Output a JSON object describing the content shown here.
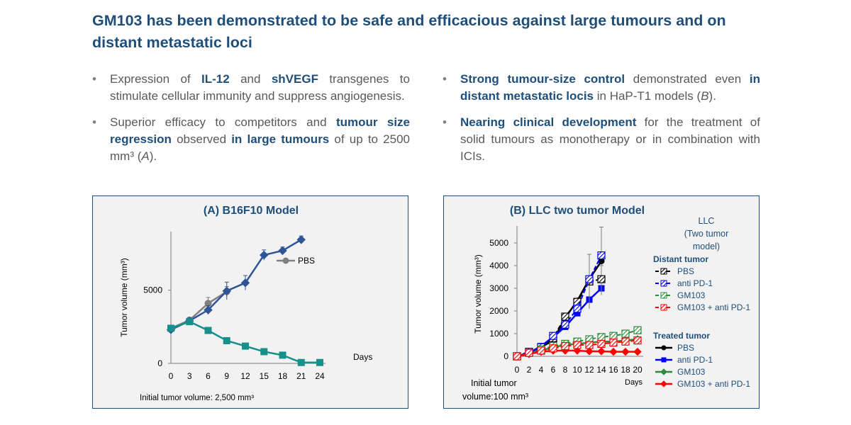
{
  "title": "GM103 has been demonstrated to be safe and efficacious against large tumours and on distant metastatic loci",
  "bullets_left": [
    {
      "pre": "Expression of ",
      "b1": "IL-12",
      "mid": " and ",
      "b2": "shVEGF",
      "post": " transgenes to stimulate cellular immunity and suppress angiogenesis."
    },
    {
      "pre": "Superior efficacy to competitors and ",
      "b1": "tumour size regression",
      "mid": " observed ",
      "b2": "in large tumours",
      "post": " of up to 2500 mm³ (",
      "it": "A",
      "end": ")."
    }
  ],
  "bullets_right": [
    {
      "b1": "Strong tumour-size control",
      "mid": " demonstrated even ",
      "b2": "in distant metastatic locis",
      "post": " in HaP-T1 models (",
      "it": "B",
      "end": ")."
    },
    {
      "b1": "Nearing clinical development",
      "post": " for the treatment of solid tumours as monotherapy or in combination with ICIs."
    }
  ],
  "colors": {
    "title": "#1f4e79",
    "text": "#595959",
    "pbs_a": "#808080",
    "treated_a": "#2f5597",
    "teal": "#178f8a",
    "black": "#000000",
    "blue": "#0000ff",
    "green": "#2e8b3d",
    "red": "#ff0000"
  },
  "chart_data": [
    {
      "type": "line",
      "title": "(A) B16F10 Model",
      "ylabel": "Tumor volume (mm³)",
      "xlabel": "Days",
      "note": "Initial tumor volume: 2,500  mm³",
      "x_ticks": [
        0,
        3,
        6,
        9,
        12,
        15,
        18,
        21,
        24
      ],
      "y_ticks": [
        0,
        5000
      ],
      "xlim": [
        0,
        24
      ],
      "ylim": [
        0,
        9000
      ],
      "legend": "PBS",
      "series": [
        {
          "name": "PBS",
          "color": "#808080",
          "marker": "circle",
          "x": [
            0,
            3,
            6,
            9
          ],
          "y": [
            2400,
            2950,
            4100,
            4900
          ],
          "err": [
            150,
            200,
            400,
            350
          ]
        },
        {
          "color": "#2f5597",
          "marker": "diamond",
          "x": [
            0,
            3,
            6,
            9,
            12,
            15,
            18,
            21
          ],
          "y": [
            2300,
            2900,
            3650,
            4950,
            5500,
            7400,
            7700,
            8450
          ],
          "err": [
            150,
            200,
            300,
            600,
            500,
            350,
            250,
            250
          ]
        },
        {
          "color": "#178f8a",
          "marker": "square",
          "x": [
            0,
            3,
            6,
            9,
            12,
            15,
            18,
            21,
            24
          ],
          "y": [
            2400,
            2850,
            2250,
            1550,
            1180,
            800,
            560,
            60,
            60
          ],
          "err": [
            0,
            0,
            0,
            0,
            0,
            0,
            0,
            0,
            0
          ]
        }
      ]
    },
    {
      "type": "line",
      "title": "(B) LLC two tumor Model",
      "ylabel": "Tumor volume (mm³)",
      "xlabel": "Days",
      "note_lines": [
        "Initial tumor",
        "volume:100  mm³"
      ],
      "x_ticks": [
        0,
        2,
        4,
        6,
        8,
        10,
        12,
        14,
        16,
        18,
        20
      ],
      "y_ticks": [
        0,
        1000,
        2000,
        3000,
        4000,
        5000
      ],
      "xlim": [
        0,
        20
      ],
      "ylim": [
        0,
        5500
      ],
      "legend_title_lines": [
        "LLC",
        "(Two tumor",
        "model)"
      ],
      "legend_groups": [
        {
          "title": "Distant tumor",
          "entries": [
            "PBS",
            "anti PD-1",
            "GM103",
            "GM103 + anti PD-1"
          ]
        },
        {
          "title": "Treated tumor",
          "entries": [
            "PBS",
            "anti PD-1",
            "GM103",
            "GM103 + anti PD-1"
          ]
        }
      ],
      "series": [
        {
          "name": "PBS",
          "group": "Treated tumor",
          "color": "#000000",
          "marker": "circle",
          "x": [
            0,
            2,
            4,
            6,
            8,
            10,
            12,
            14
          ],
          "y": [
            0,
            150,
            400,
            700,
            1700,
            2450,
            3400,
            4200
          ],
          "err": [
            0,
            0,
            0,
            0,
            0,
            0,
            0,
            1500
          ]
        },
        {
          "name": "anti PD-1",
          "group": "Treated tumor",
          "color": "#0000ff",
          "marker": "square",
          "x": [
            0,
            2,
            4,
            6,
            8,
            10,
            12,
            14
          ],
          "y": [
            0,
            150,
            450,
            850,
            1300,
            1900,
            2500,
            3000
          ],
          "err": [
            0,
            0,
            0,
            0,
            0,
            0,
            0,
            0
          ]
        },
        {
          "name": "GM103",
          "group": "Treated tumor",
          "color": "#2e8b3d",
          "marker": "diamond",
          "x": [
            0,
            2,
            4,
            6,
            8,
            10,
            12,
            14,
            16,
            18,
            20
          ],
          "y": [
            0,
            100,
            250,
            400,
            500,
            550,
            600,
            650,
            650,
            700,
            750
          ],
          "err": [
            0,
            0,
            0,
            0,
            0,
            0,
            0,
            0,
            0,
            0,
            0
          ]
        },
        {
          "name": "GM103 + anti PD-1",
          "group": "Treated tumor",
          "color": "#ff0000",
          "marker": "diamond",
          "x": [
            0,
            2,
            4,
            6,
            8,
            10,
            12,
            14,
            16,
            18,
            20
          ],
          "y": [
            0,
            100,
            200,
            250,
            250,
            250,
            220,
            220,
            200,
            200,
            200
          ],
          "err": [
            0,
            0,
            0,
            0,
            0,
            0,
            0,
            0,
            0,
            0,
            0
          ]
        },
        {
          "name": "PBS",
          "group": "Distant tumor",
          "color": "#000000",
          "marker": "hatch",
          "x": [
            0,
            2,
            4,
            6,
            8,
            10,
            12,
            14
          ],
          "y": [
            0,
            200,
            400,
            800,
            1750,
            2400,
            3300,
            3400
          ],
          "err": [
            0,
            0,
            0,
            0,
            0,
            0,
            1200,
            600
          ]
        },
        {
          "name": "anti PD-1",
          "group": "Distant tumor",
          "color": "#0000ff",
          "marker": "hatch",
          "x": [
            0,
            2,
            4,
            6,
            8,
            10,
            12,
            14
          ],
          "y": [
            0,
            200,
            400,
            900,
            1400,
            2100,
            3400,
            4450
          ],
          "err": [
            0,
            0,
            0,
            0,
            0,
            0,
            0,
            0
          ]
        },
        {
          "name": "GM103",
          "group": "Distant tumor",
          "color": "#2e8b3d",
          "marker": "hatch",
          "x": [
            0,
            2,
            4,
            6,
            8,
            10,
            12,
            14,
            16,
            18,
            20
          ],
          "y": [
            0,
            150,
            300,
            450,
            550,
            650,
            750,
            850,
            900,
            1000,
            1150
          ],
          "err": [
            0,
            0,
            0,
            0,
            0,
            0,
            0,
            150,
            150,
            150,
            150
          ]
        },
        {
          "name": "GM103 + anti PD-1",
          "group": "Distant tumor",
          "color": "#ff0000",
          "marker": "hatch",
          "x": [
            0,
            2,
            4,
            6,
            8,
            10,
            12,
            14,
            16,
            18,
            20
          ],
          "y": [
            0,
            150,
            250,
            350,
            450,
            500,
            500,
            550,
            600,
            650,
            700
          ],
          "err": [
            0,
            0,
            0,
            0,
            0,
            0,
            0,
            0,
            0,
            0,
            0
          ]
        }
      ]
    }
  ]
}
